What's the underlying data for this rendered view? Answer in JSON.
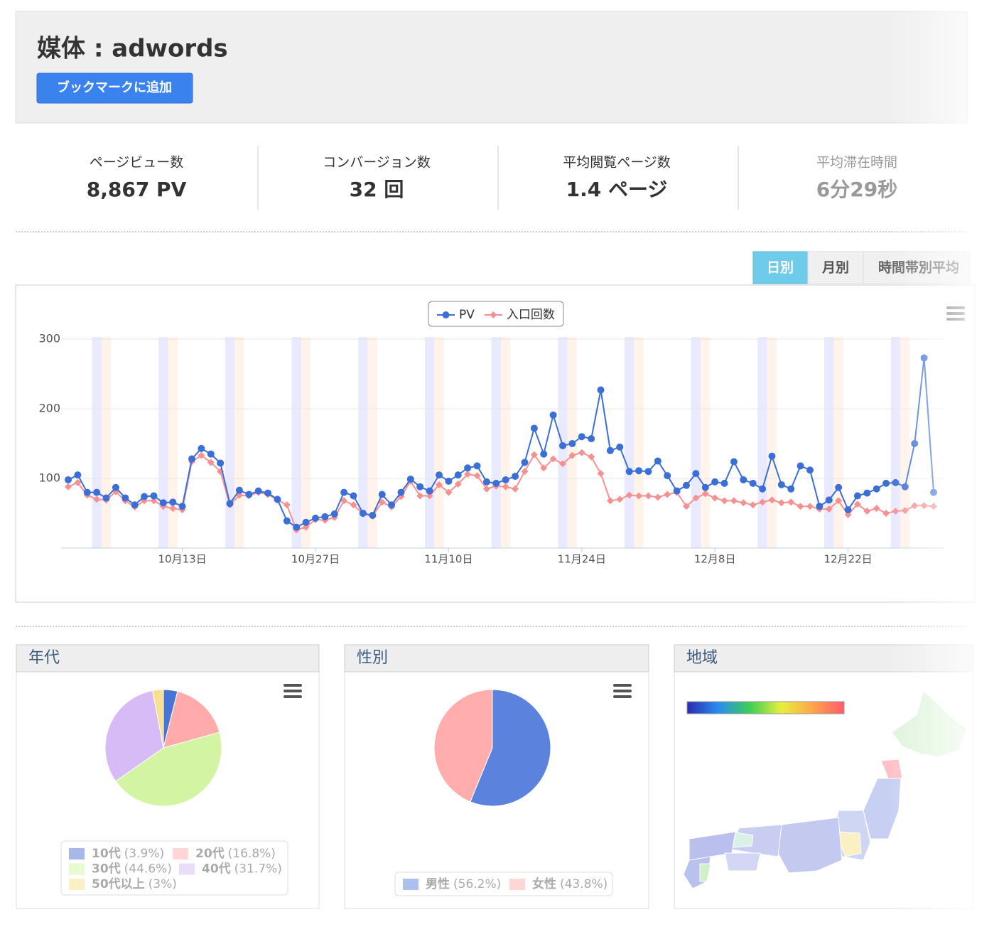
{
  "header": {
    "title": "媒体 : adwords",
    "button": "ブックマークに追加"
  },
  "stats": [
    {
      "label": "ページビュー数",
      "value": "8,867 PV"
    },
    {
      "label": "コンバージョン数",
      "value": "32 回"
    },
    {
      "label": "平均閲覧ページ数",
      "value": "1.4 ページ"
    },
    {
      "label": "平均滞在時間",
      "value": "6分29秒"
    }
  ],
  "tabs": [
    "日別",
    "月別",
    "時間帯別平均"
  ],
  "region": {
    "title": "地域"
  },
  "chart_data": [
    {
      "type": "line",
      "categories": [
        null,
        null,
        null,
        null,
        null,
        null,
        null,
        null,
        null,
        null,
        null,
        null,
        "10月13日",
        null,
        null,
        null,
        null,
        null,
        null,
        null,
        null,
        null,
        null,
        null,
        null,
        null,
        "10月27日",
        null,
        null,
        null,
        null,
        null,
        null,
        null,
        null,
        null,
        null,
        null,
        null,
        null,
        "11月10日",
        null,
        null,
        null,
        null,
        null,
        null,
        null,
        null,
        null,
        null,
        null,
        null,
        null,
        "11月24日",
        null,
        null,
        null,
        null,
        null,
        null,
        null,
        null,
        null,
        null,
        null,
        null,
        null,
        "12月8日",
        null,
        null,
        null,
        null,
        null,
        null,
        null,
        null,
        null,
        null,
        null,
        null,
        null,
        "12月22日",
        null,
        null,
        null,
        null,
        null,
        null,
        null,
        null,
        null
      ],
      "series": [
        {
          "name": "PV",
          "color": "#3b6fd6",
          "marker": "circle",
          "values": [
            98,
            105,
            80,
            80,
            72,
            87,
            72,
            62,
            74,
            75,
            65,
            66,
            60,
            128,
            143,
            135,
            122,
            64,
            83,
            77,
            82,
            79,
            70,
            39,
            30,
            37,
            43,
            45,
            49,
            80,
            75,
            50,
            47,
            77,
            62,
            80,
            99,
            88,
            82,
            105,
            96,
            105,
            115,
            118,
            95,
            93,
            98,
            103,
            123,
            172,
            135,
            191,
            147,
            150,
            160,
            157,
            227,
            140,
            145,
            110,
            111,
            110,
            125,
            104,
            82,
            90,
            107,
            87,
            95,
            93,
            124,
            98,
            93,
            85,
            132,
            91,
            85,
            118,
            112,
            60,
            69,
            87,
            55,
            75,
            79,
            85,
            93,
            94,
            88,
            150,
            273,
            80
          ]
        },
        {
          "name": "入口回数",
          "color": "#f79191",
          "marker": "diamond",
          "values": [
            88,
            94,
            76,
            70,
            69,
            81,
            68,
            59,
            68,
            68,
            60,
            57,
            55,
            124,
            133,
            123,
            110,
            62,
            76,
            75,
            80,
            77,
            69,
            62,
            26,
            30,
            41,
            40,
            44,
            68,
            62,
            49,
            46,
            66,
            59,
            74,
            96,
            75,
            75,
            91,
            80,
            92,
            106,
            104,
            85,
            89,
            88,
            85,
            110,
            134,
            115,
            128,
            121,
            133,
            137,
            131,
            107,
            68,
            70,
            76,
            75,
            75,
            73,
            77,
            80,
            60,
            72,
            78,
            72,
            68,
            68,
            65,
            62,
            66,
            69,
            65,
            66,
            60,
            60,
            56,
            56,
            68,
            48,
            63,
            53,
            57,
            50,
            53,
            54,
            61,
            61,
            60
          ]
        }
      ],
      "ylim": [
        0,
        300
      ],
      "yticks": [
        100,
        200,
        300
      ],
      "grid": true,
      "legend": "top"
    },
    {
      "type": "pie",
      "title": "年代",
      "series": [
        {
          "name": "10代",
          "color": "#4a74d4",
          "value": 3.9,
          "value_label": "(3.9%)"
        },
        {
          "name": "20代",
          "color": "#ffabab",
          "value": 16.8,
          "value_label": "(16.8%)"
        },
        {
          "name": "30代",
          "color": "#d3f5a3",
          "value": 44.6,
          "value_label": "(44.6%)"
        },
        {
          "name": "40代",
          "color": "#d6bbf6",
          "value": 31.7,
          "value_label": "(31.7%)"
        },
        {
          "name": "50代以上",
          "color": "#f8e08e",
          "value": 3,
          "value_label": "(3%)"
        }
      ]
    },
    {
      "type": "pie",
      "title": "性別",
      "series": [
        {
          "name": "男性",
          "color": "#5b82dc",
          "value": 56.2,
          "value_label": "(56.2%)"
        },
        {
          "name": "女性",
          "color": "#ffadad",
          "value": 43.8,
          "value_label": "(43.8%)"
        }
      ]
    }
  ]
}
